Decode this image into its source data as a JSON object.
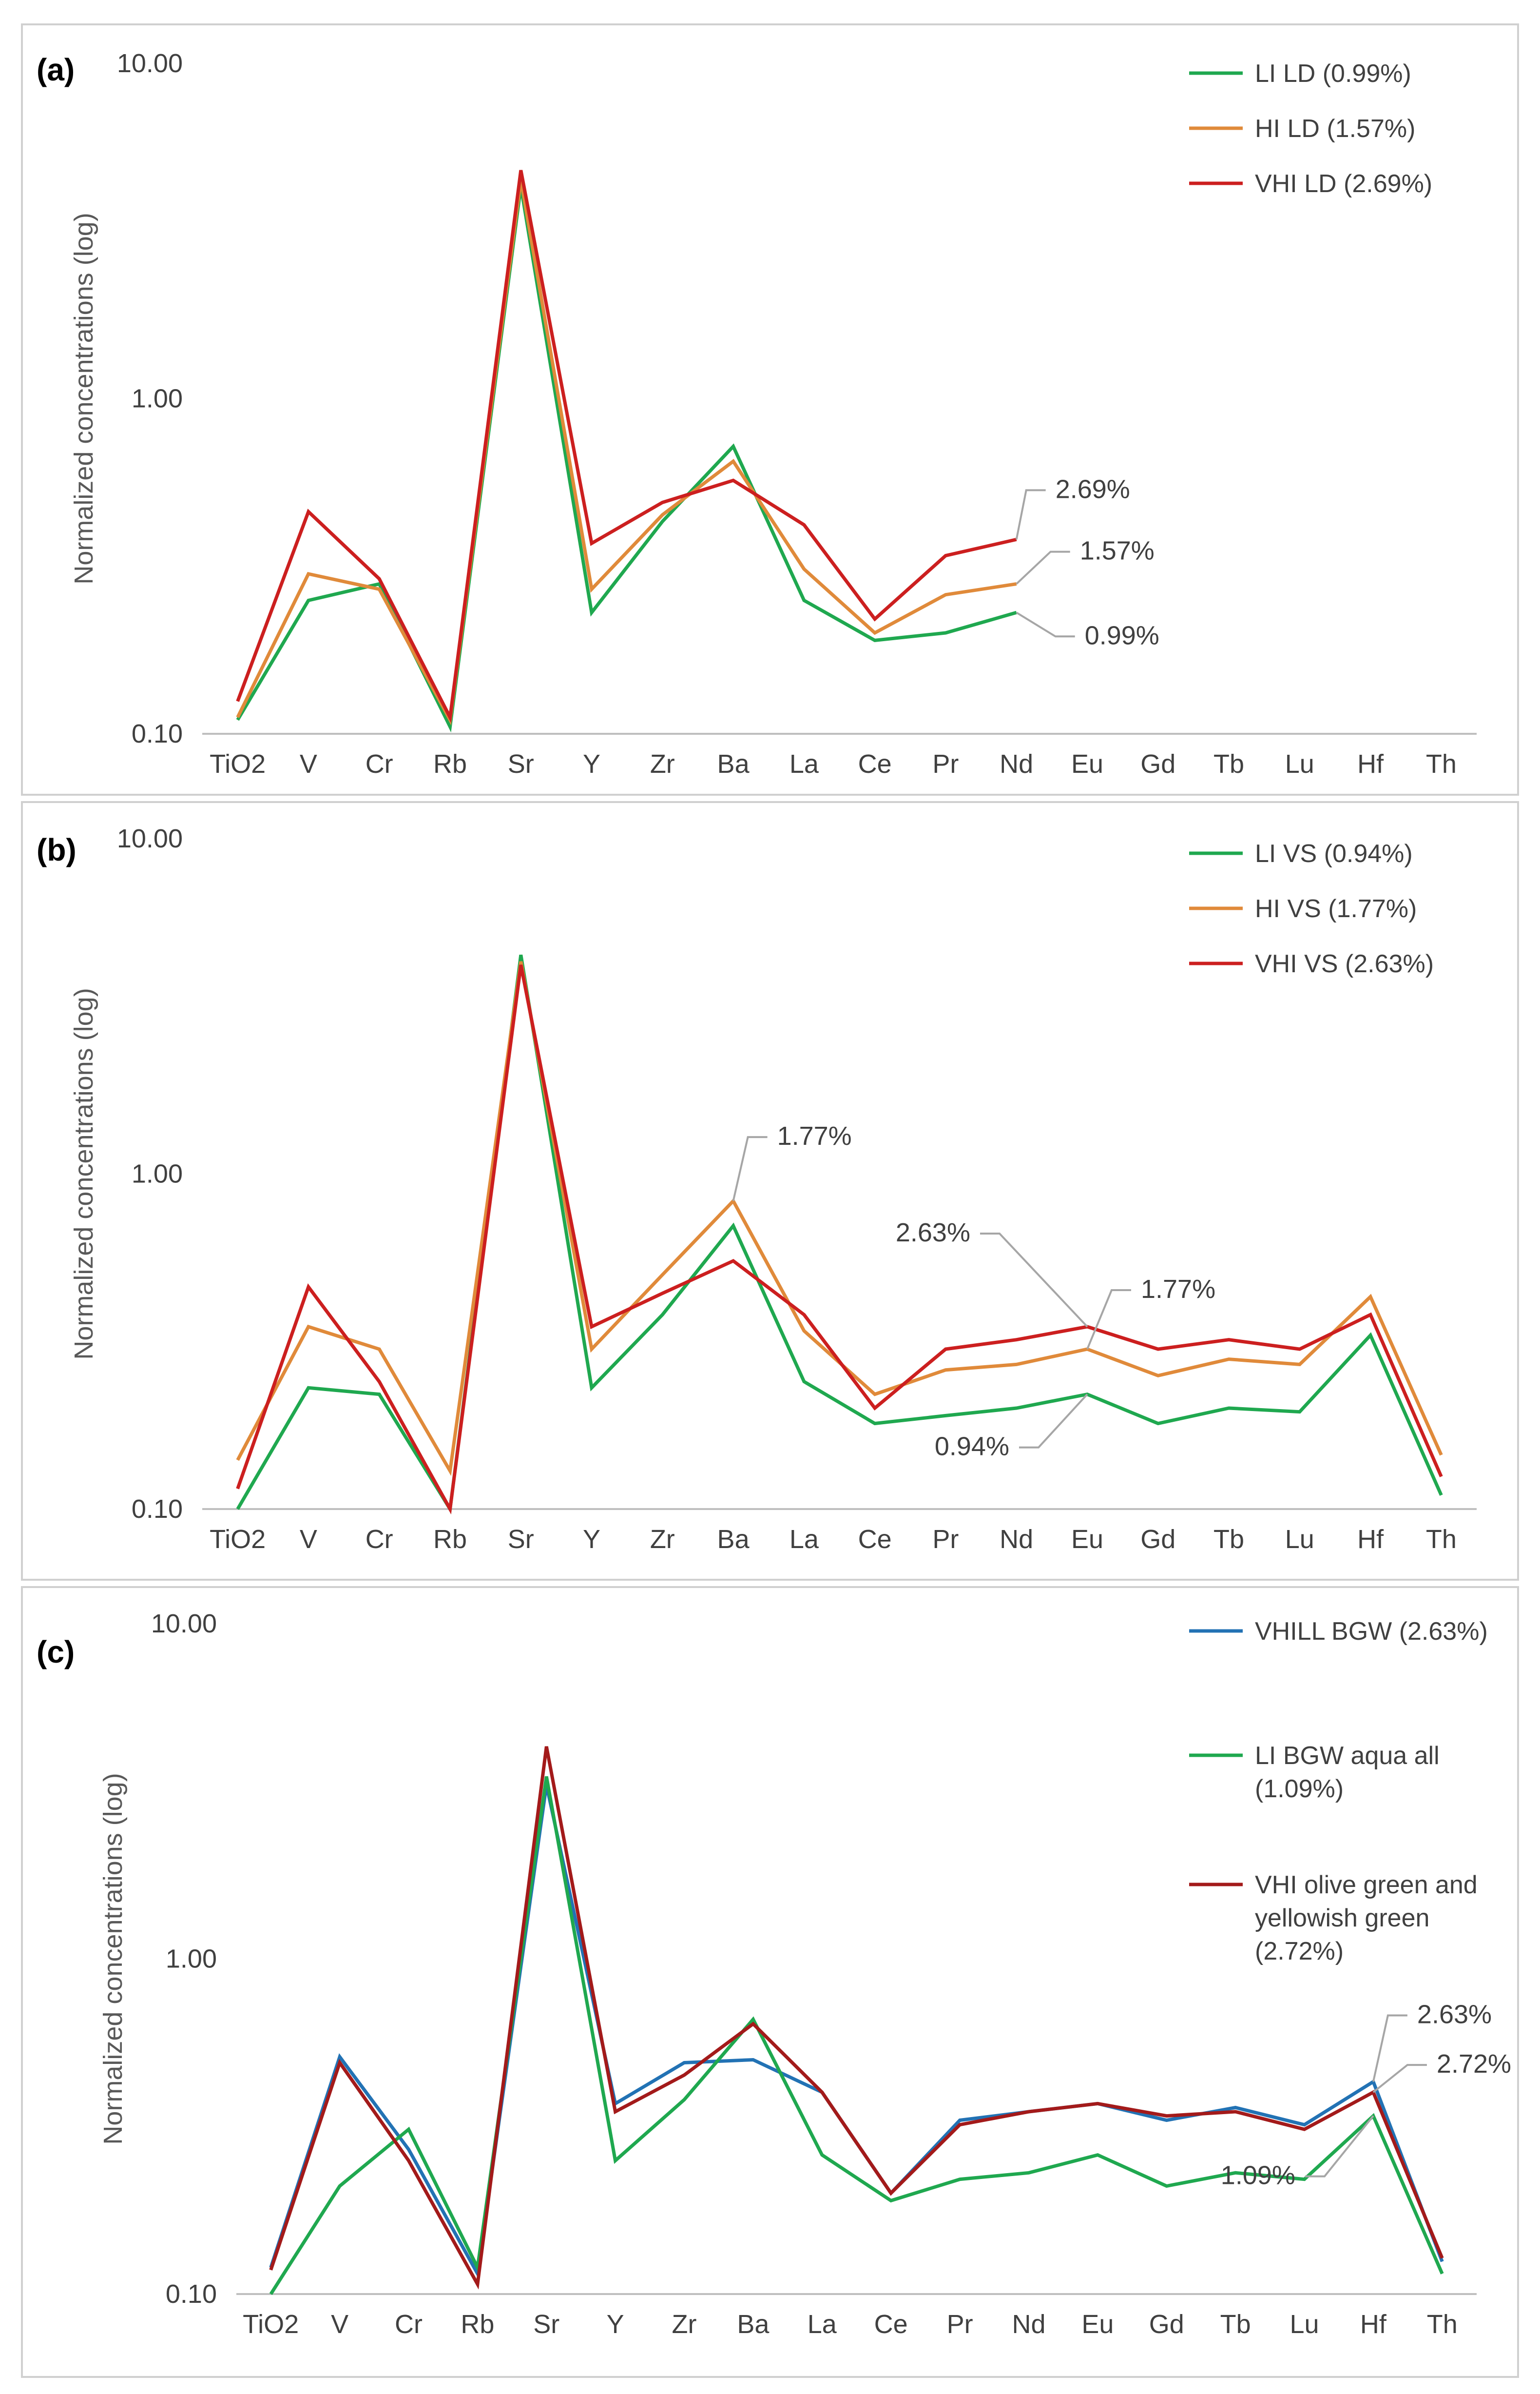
{
  "figure": {
    "type": "multi-panel line charts",
    "y_axis_scale": "log"
  },
  "chart_data": [
    {
      "type": "line",
      "panel_label": "(a)",
      "ylabel": "Normalized concentrations (log)",
      "yscale": "log",
      "ylim": [
        0.1,
        10
      ],
      "yticks": [
        "0.10",
        "1.00",
        "10.00"
      ],
      "categories": [
        "TiO2",
        "V",
        "Cr",
        "Rb",
        "Sr",
        "Y",
        "Zr",
        "Ba",
        "La",
        "Ce",
        "Pr",
        "Nd",
        "Eu",
        "Gd",
        "Tb",
        "Lu",
        "Hf",
        "Th"
      ],
      "legend_position": "top-right",
      "series": [
        {
          "name": "LI LD (0.99%)",
          "color": "#1fa84f",
          "values": [
            0.11,
            0.25,
            0.28,
            0.105,
            4.3,
            0.23,
            0.43,
            0.72,
            0.25,
            0.19,
            0.2,
            0.23,
            null,
            null,
            null,
            null,
            null,
            null
          ]
        },
        {
          "name": "HI LD (1.57%)",
          "color": "#e08a3a",
          "values": [
            0.112,
            0.3,
            0.27,
            0.11,
            4.5,
            0.27,
            0.45,
            0.65,
            0.31,
            0.2,
            0.26,
            0.28,
            null,
            null,
            null,
            null,
            null,
            null
          ]
        },
        {
          "name": "VHI LD (2.69%)",
          "color": "#cc1f1f",
          "values": [
            0.125,
            0.46,
            0.29,
            0.112,
            4.8,
            0.37,
            0.49,
            0.57,
            0.42,
            0.22,
            0.34,
            0.38,
            null,
            null,
            null,
            null,
            null,
            null
          ]
        }
      ],
      "annotations": [
        {
          "text": "2.69%",
          "series": 2,
          "category": "Nd"
        },
        {
          "text": "1.57%",
          "series": 1,
          "category": "Nd"
        },
        {
          "text": "0.99%",
          "series": 0,
          "category": "Nd"
        }
      ]
    },
    {
      "type": "line",
      "panel_label": "(b)",
      "ylabel": "Normalized concentrations (log)",
      "yscale": "log",
      "ylim": [
        0.1,
        10
      ],
      "yticks": [
        "0.10",
        "1.00",
        "10.00"
      ],
      "categories": [
        "TiO2",
        "V",
        "Cr",
        "Rb",
        "Sr",
        "Y",
        "Zr",
        "Ba",
        "La",
        "Ce",
        "Pr",
        "Nd",
        "Eu",
        "Gd",
        "Tb",
        "Lu",
        "Hf",
        "Th"
      ],
      "legend_position": "top-right",
      "series": [
        {
          "name": "LI VS (0.94%)",
          "color": "#1fa84f",
          "values": [
            0.1,
            0.23,
            0.22,
            0.1,
            4.5,
            0.23,
            0.38,
            0.7,
            0.24,
            0.18,
            0.19,
            0.2,
            0.22,
            0.18,
            0.2,
            0.195,
            0.33,
            0.11
          ]
        },
        {
          "name": "HI VS (1.77%)",
          "color": "#e08a3a",
          "values": [
            0.14,
            0.35,
            0.3,
            0.13,
            4.3,
            0.3,
            0.5,
            0.83,
            0.34,
            0.22,
            0.26,
            0.27,
            0.3,
            0.25,
            0.28,
            0.27,
            0.43,
            0.145
          ]
        },
        {
          "name": "VHI VS (2.63%)",
          "color": "#cc1f1f",
          "values": [
            0.115,
            0.46,
            0.24,
            0.1,
            4.2,
            0.35,
            0.44,
            0.55,
            0.38,
            0.2,
            0.3,
            0.32,
            0.35,
            0.3,
            0.32,
            0.3,
            0.38,
            0.125
          ]
        }
      ],
      "annotations": [
        {
          "text": "1.77%",
          "series": 1,
          "category": "Ba"
        },
        {
          "text": "2.63%",
          "series": 2,
          "category": "Eu"
        },
        {
          "text": "1.77%",
          "series": 1,
          "category": "Eu"
        },
        {
          "text": "0.94%",
          "series": 0,
          "category": "Eu"
        }
      ]
    },
    {
      "type": "line",
      "panel_label": "(c)",
      "ylabel": "Normalized concentrations (log)",
      "yscale": "log",
      "ylim": [
        0.1,
        10
      ],
      "yticks": [
        "0.10",
        "1.00",
        "10.00"
      ],
      "categories": [
        "TiO2",
        "V",
        "Cr",
        "Rb",
        "Sr",
        "Y",
        "Zr",
        "Ba",
        "La",
        "Ce",
        "Pr",
        "Nd",
        "Eu",
        "Gd",
        "Tb",
        "Lu",
        "Hf",
        "Th"
      ],
      "legend_position": "top-right",
      "series": [
        {
          "name": "VHILL BGW (2.63%)",
          "color": "#2272b4",
          "values": [
            0.12,
            0.51,
            0.27,
            0.115,
            3.3,
            0.37,
            0.49,
            0.5,
            0.4,
            0.2,
            0.33,
            0.35,
            0.37,
            0.33,
            0.36,
            0.32,
            0.43,
            0.125
          ]
        },
        {
          "name": "LI BGW aqua all (1.09%)",
          "color": "#1fa84f",
          "values": [
            0.1,
            0.21,
            0.31,
            0.12,
            3.5,
            0.25,
            0.38,
            0.66,
            0.26,
            0.19,
            0.22,
            0.23,
            0.26,
            0.21,
            0.23,
            0.22,
            0.34,
            0.115
          ]
        },
        {
          "name": "VHI olive green and yellowish green (2.72%)",
          "color": "#a31a1a",
          "values": [
            0.118,
            0.49,
            0.25,
            0.107,
            4.3,
            0.35,
            0.45,
            0.64,
            0.4,
            0.2,
            0.32,
            0.35,
            0.37,
            0.34,
            0.35,
            0.31,
            0.4,
            0.128
          ]
        }
      ],
      "annotations": [
        {
          "text": "2.63%",
          "series": 0,
          "category": "Hf"
        },
        {
          "text": "2.72%",
          "series": 2,
          "category": "Hf"
        },
        {
          "text": "1.09%",
          "series": 1,
          "category": "Hf"
        }
      ]
    }
  ]
}
